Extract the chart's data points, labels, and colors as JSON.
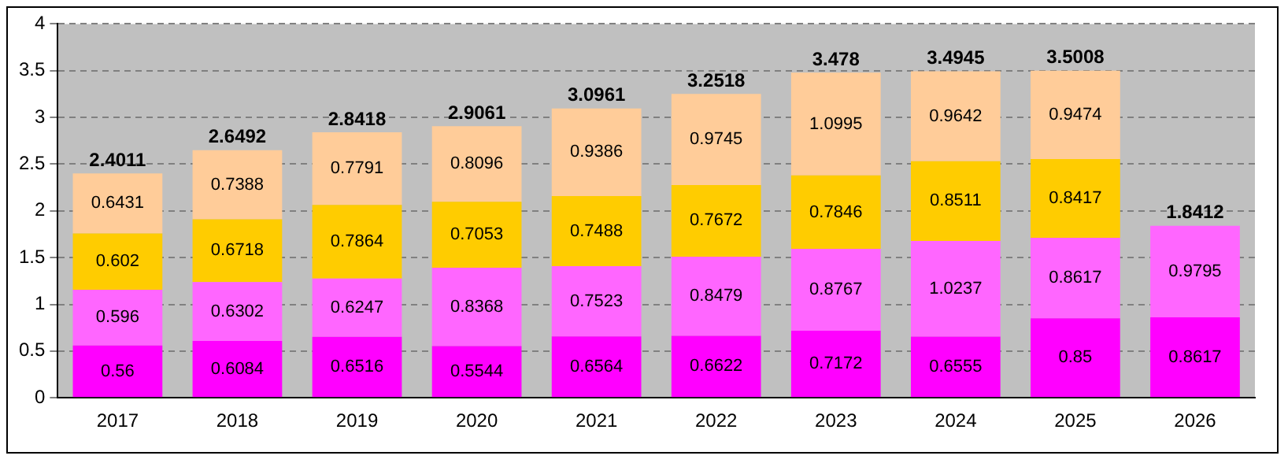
{
  "chart_data": {
    "type": "bar",
    "stacked": true,
    "categories": [
      "2017",
      "2018",
      "2019",
      "2020",
      "2021",
      "2022",
      "2023",
      "2024",
      "2025",
      "2026"
    ],
    "series": [
      {
        "color": "#ff00ff",
        "values": [
          0.56,
          0.6084,
          0.6516,
          0.5544,
          0.6564,
          0.6622,
          0.7172,
          0.6555,
          0.85,
          0.8617
        ]
      },
      {
        "color": "#ff66ff",
        "values": [
          0.596,
          0.6302,
          0.6247,
          0.8368,
          0.7523,
          0.8479,
          0.8767,
          1.0237,
          0.8617,
          0.9795
        ]
      },
      {
        "color": "#ffcc00",
        "values": [
          0.602,
          0.6718,
          0.7864,
          0.7053,
          0.7488,
          0.7672,
          0.7846,
          0.8511,
          0.8417,
          null
        ]
      },
      {
        "color": "#ffcc99",
        "values": [
          0.6431,
          0.7388,
          0.7791,
          0.8096,
          0.9386,
          0.9745,
          1.0995,
          0.9642,
          0.9474,
          null
        ]
      }
    ],
    "totals": [
      "2.4011",
      "2.6492",
      "2.8418",
      "2.9061",
      "3.0961",
      "3.2518",
      "3.478",
      "3.4945",
      "3.5008",
      "1.8412"
    ],
    "data_labels": true,
    "ylim": [
      0,
      4
    ],
    "yticks": [
      0,
      0.5,
      1,
      1.5,
      2,
      2.5,
      3,
      3.5,
      4
    ],
    "grid": "y",
    "legend": false
  }
}
